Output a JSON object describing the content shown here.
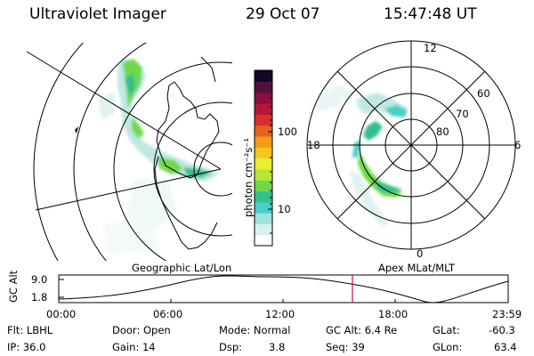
{
  "header": {
    "title": "Ultraviolet Imager",
    "date": "29 Oct 07",
    "time": "15:47:48 UT"
  },
  "colorbar": {
    "unit_label": "photon cm⁻²s⁻¹",
    "tick_100": "100",
    "tick_10": "10",
    "colors": [
      "#ffffff",
      "#d8f0ee",
      "#9fe3dc",
      "#46d0c7",
      "#33c08a",
      "#6fd84a",
      "#b7e636",
      "#e9ee2f",
      "#f4c61f",
      "#f39a18",
      "#e8641c",
      "#d5302a",
      "#b61637",
      "#8e0d3f",
      "#54103f",
      "#14082a"
    ]
  },
  "left_map": {
    "caption": "Geographic Lat/Lon"
  },
  "right_map": {
    "caption": "Apex MLat/MLT",
    "mlt_labels": {
      "top": "12",
      "bottom": "0",
      "left": "18",
      "right": "6"
    },
    "lat_labels": {
      "r60": "60",
      "r70": "70",
      "r80": "80"
    }
  },
  "altitude_plot": {
    "ylabel": "GC Alt",
    "ymax": "9.0",
    "ymin": "1.8",
    "xticks": [
      "00:00",
      "06:00",
      "12:00",
      "18:00",
      "23:59"
    ],
    "current_marker_time": "15:47:48"
  },
  "info": {
    "flt": "Flt: LBHL",
    "ip": "IP: 36.0",
    "door": "Door: Open",
    "gain": "Gain: 14",
    "mode": "Mode: Normal",
    "dsp_label": "Dsp:",
    "dsp_value": "3.8",
    "gc_alt": "GC Alt: 6.4 Re",
    "seq": "Seq: 39",
    "glat_label": "GLat:",
    "glat_value": "-60.3",
    "glon_label": "GLon:",
    "glon_value": "63.4"
  }
}
